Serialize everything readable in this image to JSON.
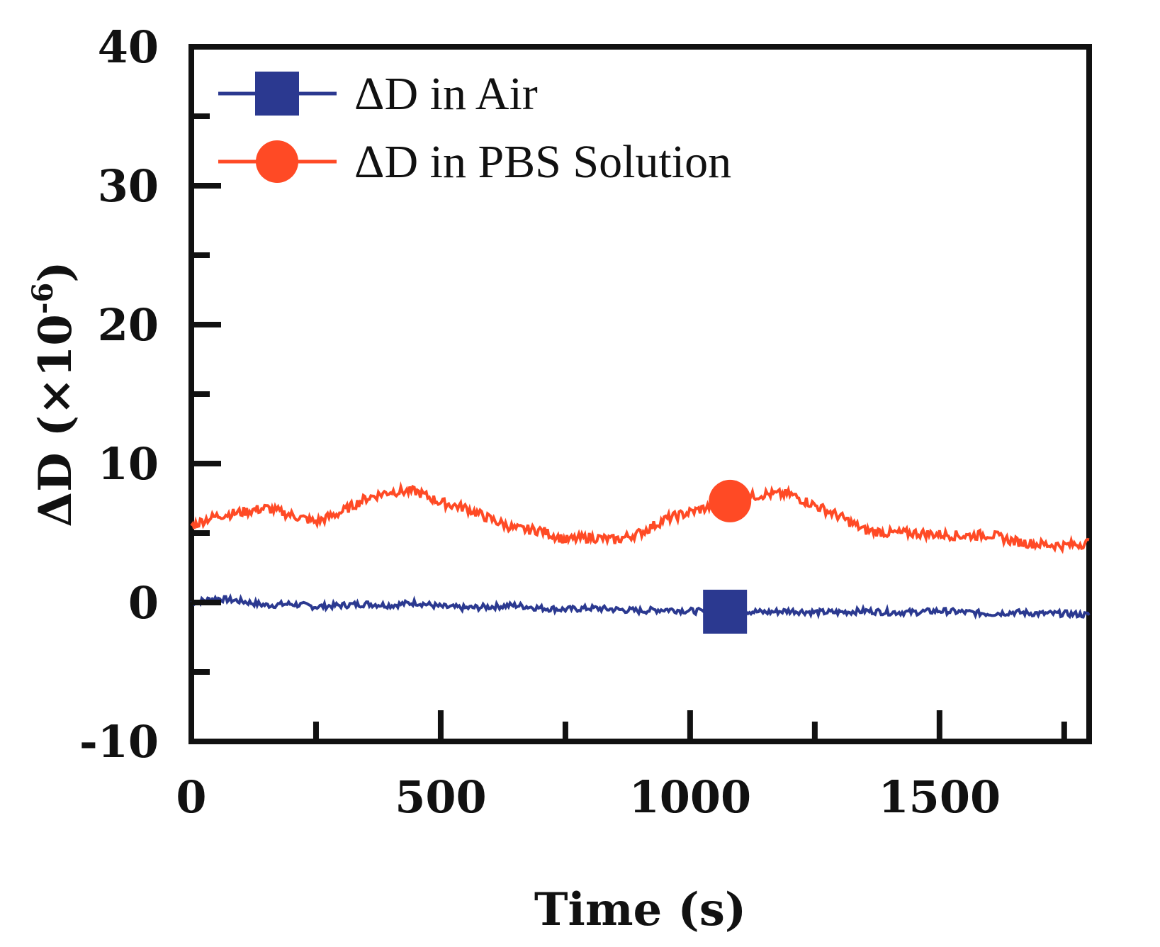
{
  "chart_data": {
    "type": "line",
    "title": "",
    "xlabel": "Time (s)",
    "ylabel": "ΔD (×10",
    "ylabel_exponent": "-6",
    "ylabel_close": ")",
    "xlim": [
      0,
      1800
    ],
    "ylim": [
      -10,
      40
    ],
    "x_ticks": [
      0,
      500,
      1000,
      1500
    ],
    "x_tick_labels": [
      "0",
      "500",
      "1000",
      "1500"
    ],
    "x_minor_ticks": [
      250,
      750,
      1250,
      1750
    ],
    "y_ticks": [
      -10,
      0,
      10,
      20,
      30,
      40
    ],
    "y_tick_labels": [
      "-10",
      "0",
      "10",
      "20",
      "30",
      "40"
    ],
    "y_minor_ticks": [
      -5,
      5,
      15,
      25,
      35
    ],
    "legend_position": "top-left",
    "series": [
      {
        "name": "ΔD in Air",
        "color": "#2b3990",
        "marker": "square",
        "marker_x": 1070,
        "x": [
          0,
          50,
          100,
          150,
          200,
          250,
          300,
          350,
          400,
          450,
          500,
          550,
          600,
          650,
          700,
          750,
          800,
          850,
          900,
          950,
          1000,
          1050,
          1100,
          1150,
          1200,
          1250,
          1300,
          1350,
          1400,
          1450,
          1500,
          1550,
          1600,
          1650,
          1700,
          1750,
          1800
        ],
        "values": [
          0.0,
          0.3,
          0.1,
          -0.2,
          -0.1,
          -0.3,
          -0.2,
          -0.1,
          -0.2,
          0.0,
          -0.3,
          -0.4,
          -0.3,
          -0.2,
          -0.4,
          -0.5,
          -0.4,
          -0.5,
          -0.6,
          -0.5,
          -0.6,
          -0.7,
          -0.6,
          -0.7,
          -0.6,
          -0.7,
          -0.7,
          -0.6,
          -0.7,
          -0.7,
          -0.6,
          -0.7,
          -0.8,
          -0.7,
          -0.8,
          -0.8,
          -0.9
        ]
      },
      {
        "name": "ΔD in PBS Solution",
        "color": "#ff4a25",
        "marker": "circle",
        "marker_x": 1080,
        "x": [
          0,
          30,
          60,
          100,
          150,
          200,
          250,
          300,
          350,
          400,
          450,
          500,
          550,
          600,
          650,
          700,
          750,
          800,
          850,
          900,
          950,
          1000,
          1050,
          1100,
          1150,
          1200,
          1250,
          1300,
          1350,
          1400,
          1450,
          1500,
          1550,
          1600,
          1650,
          1700,
          1750,
          1800
        ],
        "values": [
          5.5,
          6.0,
          6.3,
          6.5,
          6.8,
          6.3,
          5.8,
          6.5,
          7.5,
          8.0,
          8.0,
          7.2,
          6.8,
          6.0,
          5.3,
          5.2,
          4.5,
          4.7,
          4.5,
          5.0,
          6.0,
          6.5,
          7.0,
          7.5,
          7.8,
          7.8,
          7.0,
          6.2,
          5.2,
          5.0,
          5.0,
          4.9,
          4.8,
          4.9,
          4.4,
          4.2,
          4.1,
          4.3
        ]
      }
    ]
  }
}
